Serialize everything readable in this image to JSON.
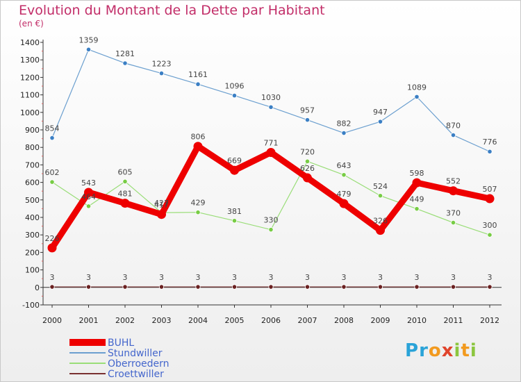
{
  "header": {
    "title": "Evolution du Montant de la Dette par Habitant",
    "subtitle": "(en €)"
  },
  "logo": {
    "text": "Proxiti"
  },
  "chart_data": {
    "type": "line",
    "title": "Evolution du Montant de la Dette par Habitant",
    "subtitle": "(en €)",
    "xlabel": "",
    "ylabel": "",
    "x": [
      "2000",
      "2001",
      "2002",
      "2003",
      "2004",
      "2005",
      "2006",
      "2007",
      "2008",
      "2009",
      "2010",
      "2011",
      "2012"
    ],
    "ylim": [
      -100,
      1400
    ],
    "yticks": [
      -100,
      0,
      100,
      200,
      300,
      400,
      500,
      600,
      700,
      800,
      900,
      1000,
      1100,
      1200,
      1300,
      1400
    ],
    "grid": false,
    "legend": "bottom-left",
    "series": [
      {
        "name": "BUHL",
        "color": "#ee0000",
        "values": [
          226,
          543,
          481,
          417,
          806,
          669,
          771,
          626,
          479,
          326,
          598,
          552,
          507
        ]
      },
      {
        "name": "Stundwiller",
        "color": "#6b9fcf",
        "values": [
          854,
          1359,
          1281,
          1223,
          1161,
          1096,
          1030,
          957,
          882,
          947,
          1089,
          870,
          776
        ]
      },
      {
        "name": "Oberroedern",
        "color": "#99dd77",
        "values": [
          602,
          464,
          605,
          427,
          429,
          381,
          330,
          720,
          643,
          524,
          449,
          370,
          300
        ]
      },
      {
        "name": "Croettwiller",
        "color": "#7a3030",
        "values": [
          3,
          3,
          3,
          3,
          3,
          3,
          3,
          3,
          3,
          3,
          3,
          3,
          3
        ]
      }
    ]
  }
}
